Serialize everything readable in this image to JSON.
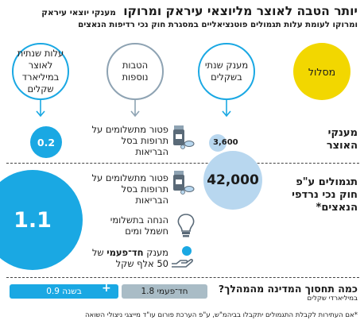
{
  "header": {
    "title": "יותר הטבה לאוצר מליוצאי עיראק ומרוקו",
    "tag": "מענקי יוצאי עיראק",
    "subtitle": "ומרוקו לעומת עלות תגמולים פוטנציאליים במסגרת חוק נכי רדיפות הנאצים"
  },
  "columns": [
    {
      "label": "מסלול",
      "color": "#f2d700"
    },
    {
      "label": "מענק שנתי בשקלים",
      "color": "#1aa8e3"
    },
    {
      "label": "הטבות נוספות",
      "color": "#8ea3b3"
    },
    {
      "label": "עלות שנתית לאוצר במיליארד שקלים",
      "color": "#1aa8e3"
    }
  ],
  "rows": [
    {
      "label": "מענקי האוצר",
      "grant": "3,600",
      "perks": [
        {
          "icon": "medicine-icon",
          "text": "פטור מתשלומים על תרופות בסל הבריאות"
        }
      ],
      "cost": "0.2"
    },
    {
      "label": "תגמולים ע\"פ חוק נכי נרדפי הנאצים*",
      "grant": "42,000",
      "perks": [
        {
          "icon": "medicine-icon",
          "text": "פטור מתשלומים על תרופות בסל הבריאות"
        },
        {
          "icon": "lightbulb-icon",
          "text": "הנחה בתשלומי חשמל ומים"
        },
        {
          "icon": "cash-hand-icon",
          "text_bold": "חד־פעמי",
          "text_pre": "מענק",
          "text_post": "של 50 אלף שקל"
        }
      ],
      "cost": "1.1"
    }
  ],
  "summary": {
    "question": "כמה תחסוך המדינה מהמהלך?",
    "unit": "במיליארדי שקלים",
    "one_time": "1.8 חד־פעמי",
    "plus": "+",
    "annual": "0.9 בשנה"
  },
  "footnote": "*אם העתירות לקבלת התגמולים יתקבלו בביהמ\"ש, ע\"פ הערכת פורום עו\"ד מייצגי ניצולי השואה",
  "colors": {
    "accent_blue": "#1aa8e3",
    "light_blue": "#b8d7ef",
    "yellow": "#f2d700",
    "gray": "#a9bcc6"
  }
}
